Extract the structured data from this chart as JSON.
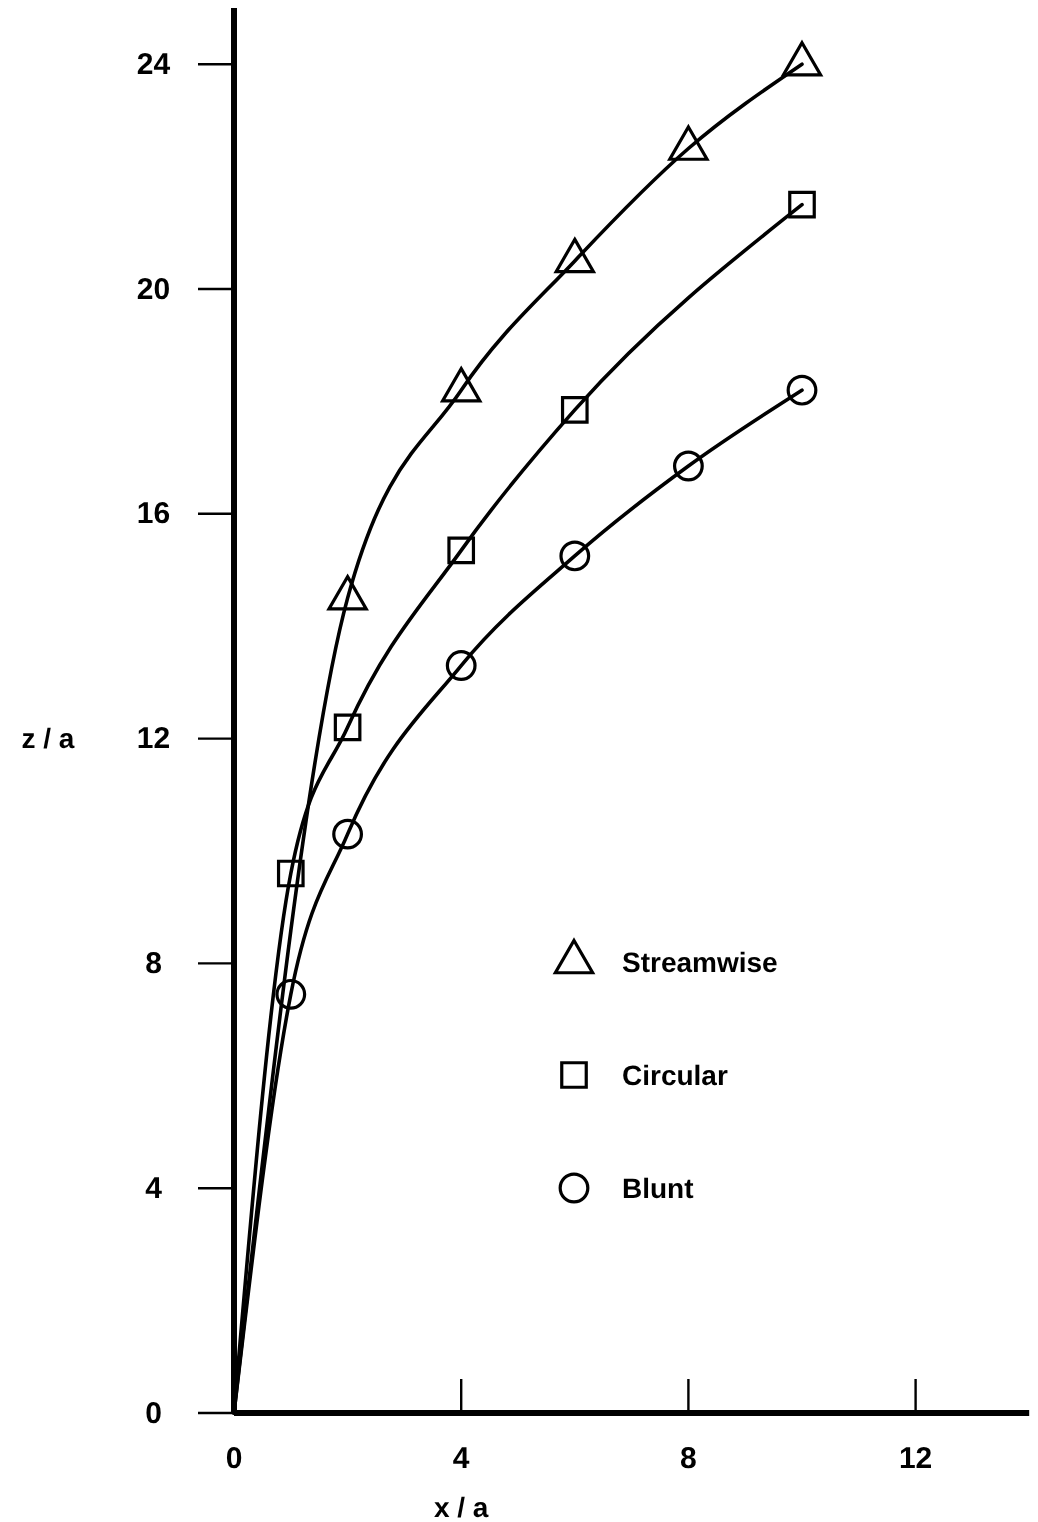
{
  "chart_data": {
    "type": "line",
    "xlabel": "x / a",
    "ylabel": "z / a",
    "xlim": [
      0,
      14
    ],
    "ylim": [
      0,
      25
    ],
    "xticks": [
      0,
      4,
      8,
      12
    ],
    "yticks": [
      0,
      4,
      8,
      12,
      16,
      20,
      24
    ],
    "grid": false,
    "legend": "right",
    "series": [
      {
        "marker": "none",
        "color": "#000000",
        "x": [
          0,
          2,
          4,
          6,
          8,
          10
        ],
        "values": [
          0,
          14.5,
          18.2,
          20.5,
          22.5,
          24.0
        ]
      },
      {
        "marker": "none",
        "color": "#000000",
        "x": [
          0,
          1,
          2,
          4,
          6,
          10
        ],
        "values": [
          0,
          9.6,
          12.2,
          15.35,
          17.85,
          21.5
        ]
      },
      {
        "marker": "none",
        "color": "#000000",
        "x": [
          0,
          1,
          2,
          4,
          6,
          8,
          10
        ],
        "values": [
          0,
          7.45,
          10.3,
          13.3,
          15.25,
          16.85,
          18.2
        ]
      },
      {
        "name": "Streamwise",
        "type": "scatter",
        "marker": "triangle",
        "color": "#000000",
        "x": [
          2,
          4,
          6,
          8,
          10
        ],
        "values": [
          14.5,
          18.2,
          20.5,
          22.5,
          24.0
        ]
      },
      {
        "name": "Circular",
        "type": "scatter",
        "marker": "square",
        "color": "#000000",
        "x": [
          1,
          2,
          4,
          6,
          10
        ],
        "values": [
          9.6,
          12.2,
          15.35,
          17.85,
          21.5
        ]
      },
      {
        "name": "Blunt",
        "type": "scatter",
        "marker": "circle",
        "color": "#000000",
        "x": [
          1,
          2,
          4,
          6,
          8,
          10
        ],
        "values": [
          7.45,
          10.3,
          13.3,
          15.25,
          16.85,
          18.2
        ]
      }
    ]
  }
}
